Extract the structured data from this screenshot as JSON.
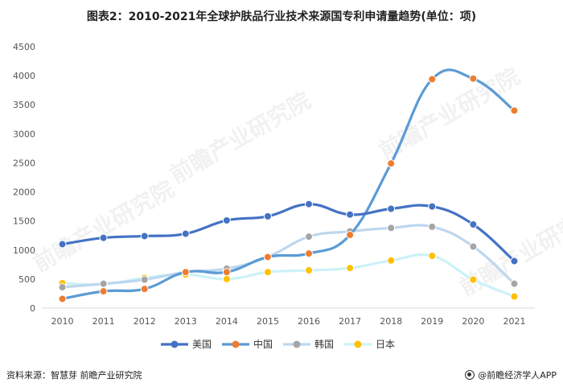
{
  "title": "图表2：2010-2021年全球护肤品行业技术来源国专利申请量趋势(单位：项)",
  "footer": {
    "source": "资料来源：智慧芽 前瞻产业研究院",
    "brand": "@前瞻经济学人APP"
  },
  "watermark": "前瞻产业研究院",
  "chart_data": {
    "type": "line",
    "categories": [
      "2010",
      "2011",
      "2012",
      "2013",
      "2014",
      "2015",
      "2016",
      "2017",
      "2018",
      "2019",
      "2020",
      "2021"
    ],
    "ylim": [
      0,
      4500
    ],
    "yticks": [
      0,
      500,
      1000,
      1500,
      2000,
      2500,
      3000,
      3500,
      4000,
      4500
    ],
    "grid": false,
    "legend_position": "bottom",
    "series": [
      {
        "name": "美国",
        "color": "#4472C4",
        "marker_color": "#4472C4",
        "values": [
          1100,
          1210,
          1240,
          1280,
          1510,
          1580,
          1790,
          1610,
          1710,
          1750,
          1440,
          810
        ]
      },
      {
        "name": "中国",
        "color": "#5B9BD5",
        "marker_color": "#ED7D31",
        "values": [
          160,
          290,
          330,
          620,
          620,
          880,
          940,
          1260,
          2490,
          3940,
          3950,
          3400
        ]
      },
      {
        "name": "韩国",
        "color": "#BDD7EE",
        "marker_color": "#A5A5A5",
        "values": [
          360,
          420,
          490,
          620,
          680,
          880,
          1230,
          1320,
          1380,
          1400,
          1060,
          420
        ]
      },
      {
        "name": "日本",
        "color": "#CCF2F8",
        "marker_color": "#FFC000",
        "values": [
          430,
          410,
          520,
          580,
          500,
          620,
          650,
          690,
          820,
          900,
          490,
          200
        ]
      }
    ]
  }
}
